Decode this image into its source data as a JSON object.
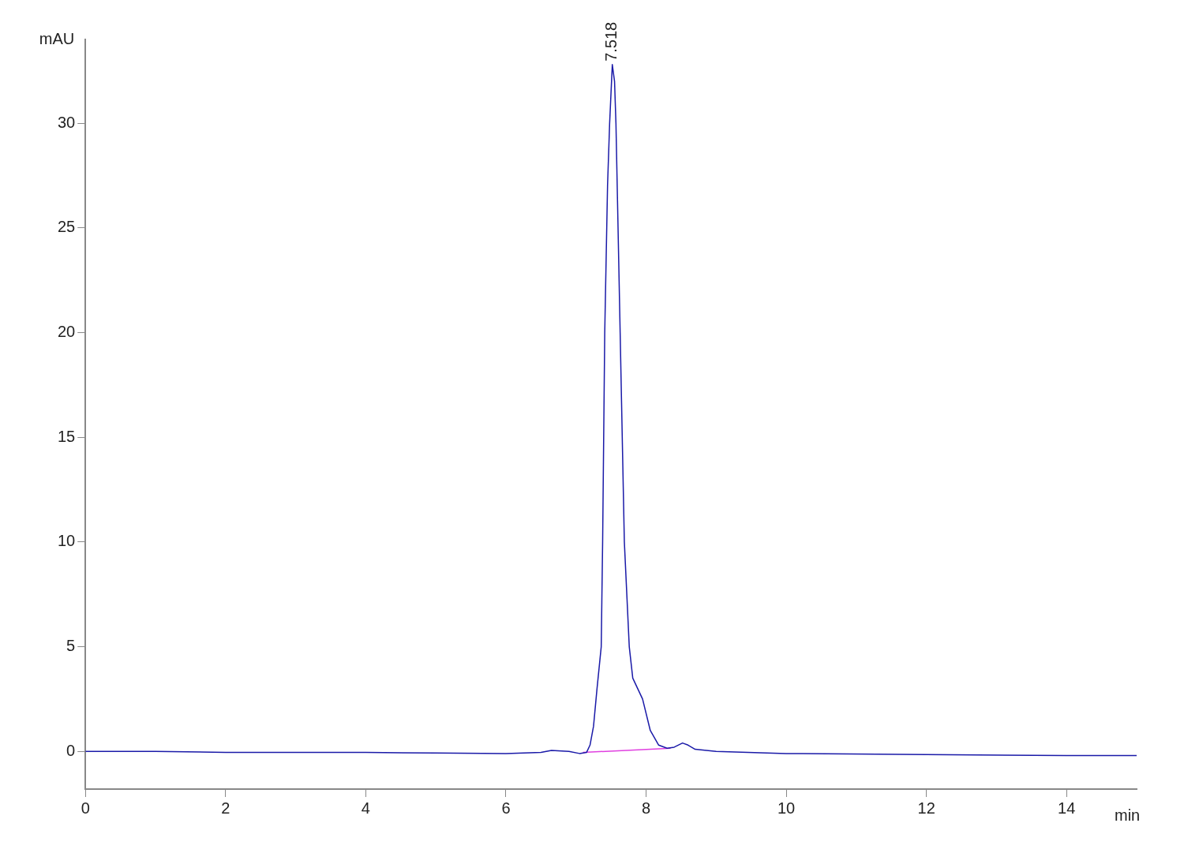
{
  "chart_data": {
    "type": "line",
    "xlabel": "min",
    "ylabel": "mAU",
    "xlim": [
      0,
      15
    ],
    "xticks": [
      0,
      2,
      4,
      6,
      8,
      10,
      12,
      14
    ],
    "ylim": [
      -1.8,
      34
    ],
    "yticks": [
      0,
      5,
      10,
      15,
      20,
      25,
      30
    ],
    "grid": false,
    "legend": false,
    "marker": "none",
    "line_style": "solid",
    "annotations": [
      {
        "text": "7.518",
        "x": 7.518,
        "y": 32.8
      }
    ],
    "series": [
      {
        "color": "#1a1aa8",
        "x": [
          0,
          1,
          2,
          3,
          4,
          5,
          6,
          6.5,
          6.65,
          6.9,
          7.05,
          7.15,
          7.2,
          7.25,
          7.3,
          7.36,
          7.38,
          7.41,
          7.45,
          7.48,
          7.518,
          7.55,
          7.57,
          7.63,
          7.69,
          7.76,
          7.81,
          7.88,
          7.95,
          8.06,
          8.18,
          8.3,
          8.4,
          8.52,
          8.6,
          8.7,
          9,
          10,
          12,
          14,
          15
        ],
        "values": [
          0,
          0,
          -0.05,
          -0.05,
          -0.05,
          -0.08,
          -0.1,
          -0.05,
          0.05,
          0,
          -0.1,
          -0.05,
          0.3,
          1.2,
          3,
          5,
          10,
          20,
          27,
          30,
          32.8,
          32,
          30,
          20,
          10,
          5,
          3.5,
          3,
          2.5,
          1,
          0.3,
          0.15,
          0.2,
          0.4,
          0.3,
          0.1,
          0,
          -0.1,
          -0.15,
          -0.2,
          -0.2
        ]
      },
      {
        "color": "#e040e0",
        "x": [
          7.1,
          8.35
        ],
        "values": [
          -0.05,
          0.15
        ]
      }
    ]
  }
}
